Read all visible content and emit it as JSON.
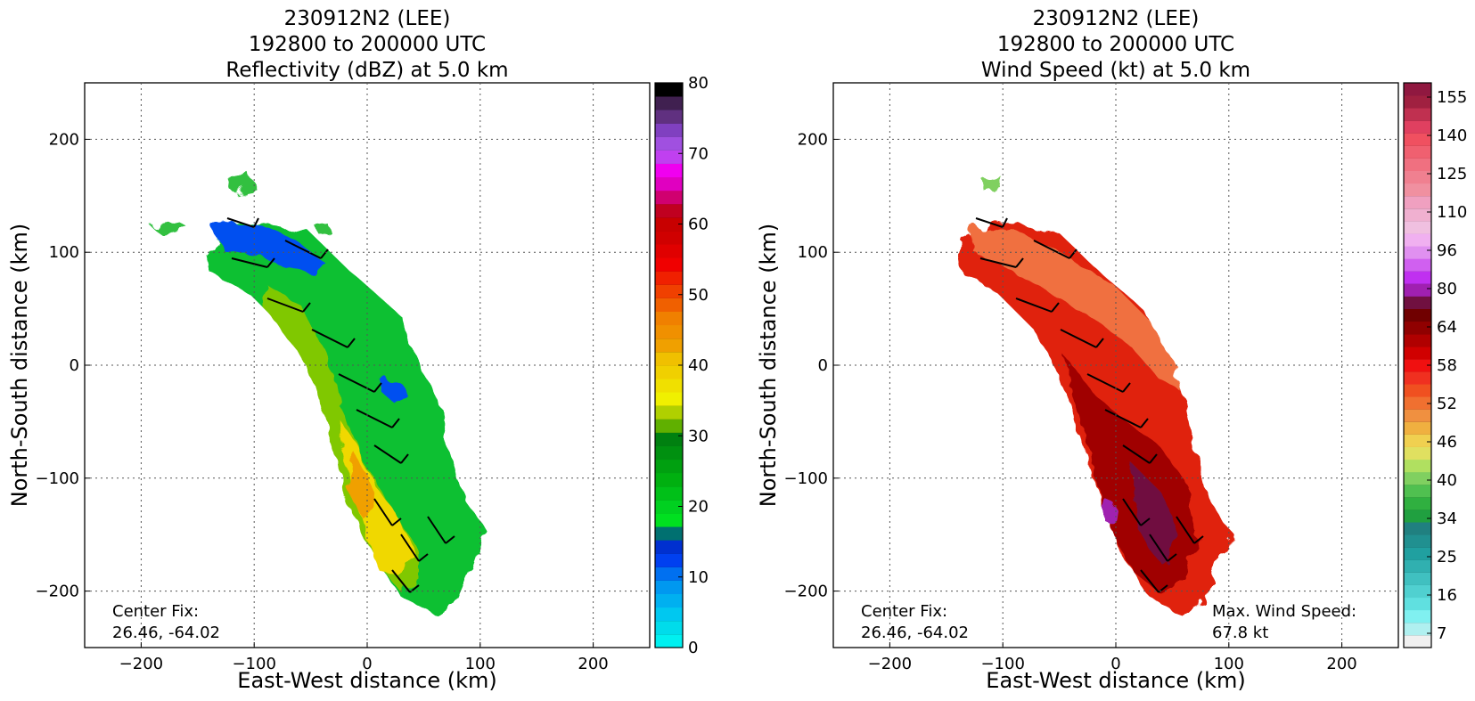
{
  "chart_data": [
    {
      "type": "heatmap",
      "title": [
        "230912N2 (LEE)",
        "192800 to 200000 UTC",
        "Reflectivity (dBZ) at 5.0 km"
      ],
      "xlabel": "East-West distance (km)",
      "ylabel": "North-South distance (km)",
      "xlim": [
        -250,
        250
      ],
      "ylim": [
        -250,
        250
      ],
      "xticks": [
        "−200",
        "−100",
        "0",
        "100",
        "200"
      ],
      "yticks": [
        "200",
        "100",
        "0",
        "−100",
        "−200"
      ],
      "grid": true,
      "annotation_left": [
        "Center Fix:",
        "26.46, -64.02"
      ],
      "colorbar": {
        "ticks": [
          "80",
          "70",
          "60",
          "50",
          "40",
          "30",
          "20",
          "10",
          "0"
        ],
        "colors": [
          "#00f0f0",
          "#00dceb",
          "#00c8f0",
          "#00b0f0",
          "#0098f0",
          "#0070f0",
          "#0040f0",
          "#0030d0",
          "#007070",
          "#00e020",
          "#00d020",
          "#00c018",
          "#00b010",
          "#00a010",
          "#009010",
          "#008010",
          "#60b000",
          "#b0d000",
          "#f0f000",
          "#f0e000",
          "#f0d000",
          "#f0c000",
          "#f0a000",
          "#f09000",
          "#f08000",
          "#f06000",
          "#f04000",
          "#f02000",
          "#f00000",
          "#e00000",
          "#d00000",
          "#c80000",
          "#c00020",
          "#d00070",
          "#e000c0",
          "#f000f0",
          "#c040f0",
          "#a050e0",
          "#8040c0",
          "#603080",
          "#402050",
          "#000000"
        ]
      }
    },
    {
      "type": "heatmap",
      "title": [
        "230912N2 (LEE)",
        "192800 to 200000 UTC",
        "Wind Speed (kt) at 5.0 km"
      ],
      "xlabel": "East-West distance (km)",
      "ylabel": "North-South distance (km)",
      "xlim": [
        -250,
        250
      ],
      "ylim": [
        -250,
        250
      ],
      "xticks": [
        "−200",
        "−100",
        "0",
        "100",
        "200"
      ],
      "yticks": [
        "200",
        "100",
        "0",
        "−100",
        "−200"
      ],
      "grid": true,
      "annotation_left": [
        "Center Fix:",
        "26.46, -64.02"
      ],
      "annotation_right": [
        "Max. Wind Speed:",
        "67.8 kt"
      ],
      "colorbar": {
        "ticks": [
          "155",
          "140",
          "125",
          "110",
          "96",
          "80",
          "64",
          "58",
          "52",
          "46",
          "40",
          "34",
          "25",
          "16",
          "7"
        ],
        "colors": [
          "#f0f0f0",
          "#b0f0f0",
          "#80f0f0",
          "#60e0e0",
          "#50d0d0",
          "#40c0c0",
          "#30b0b0",
          "#20a0a0",
          "#209090",
          "#208080",
          "#20a040",
          "#30b040",
          "#50c050",
          "#80d060",
          "#b0e060",
          "#e0e060",
          "#f0d050",
          "#f0b040",
          "#f09040",
          "#f07030",
          "#f05020",
          "#f03020",
          "#f01010",
          "#d00000",
          "#b00000",
          "#900000",
          "#700000",
          "#701040",
          "#a020b0",
          "#c030f0",
          "#d060f0",
          "#e090f0",
          "#f0b0f0",
          "#f0c0e0",
          "#f0b0d0",
          "#f0a0c0",
          "#f090a0",
          "#f08090",
          "#f07080",
          "#f06070",
          "#f05060",
          "#e04060",
          "#c03050",
          "#a02040",
          "#901840"
        ]
      },
      "max_wind_speed_kt": 67.8
    }
  ]
}
